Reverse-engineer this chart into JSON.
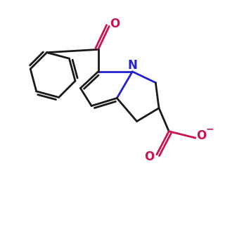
{
  "background_color": "#ffffff",
  "bond_color": "#1a1a1a",
  "nitrogen_color": "#2222cc",
  "oxygen_color": "#cc1155",
  "line_width": 2.0,
  "fig_size": [
    3.2,
    3.2
  ],
  "dpi": 100,
  "xlim": [
    0,
    10
  ],
  "ylim": [
    0,
    10
  ]
}
